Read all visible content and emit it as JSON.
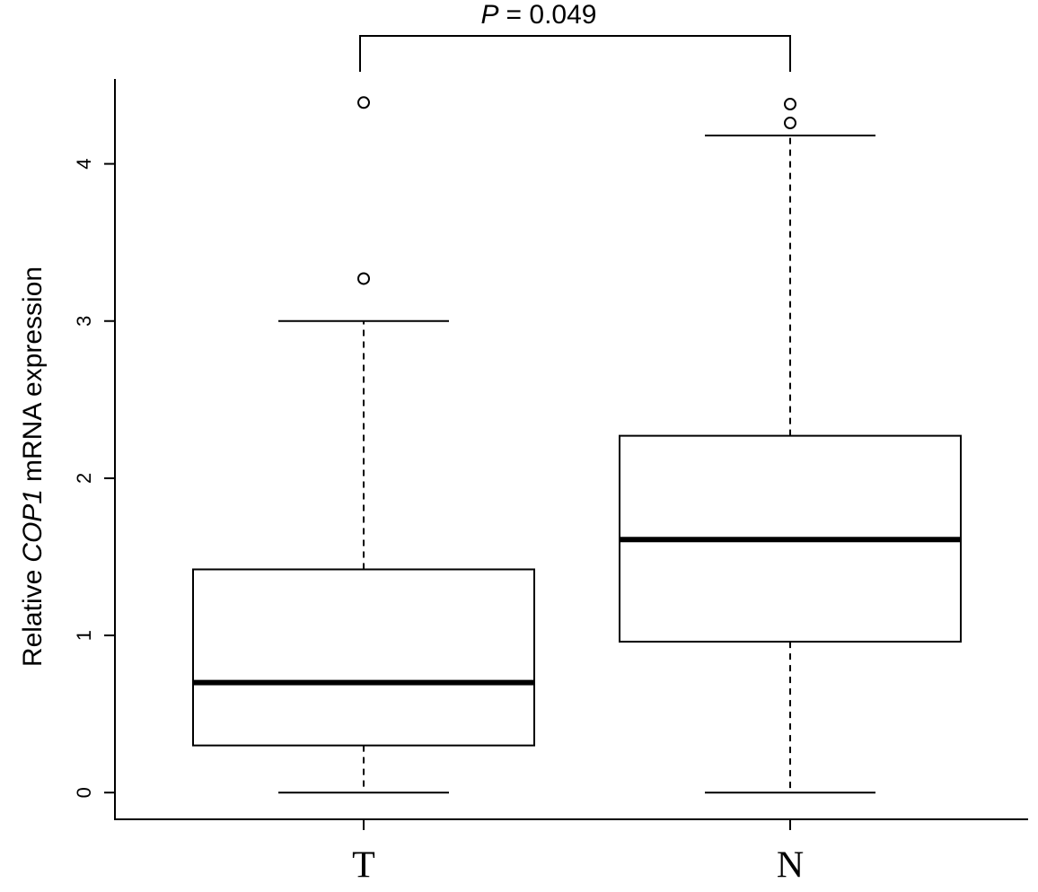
{
  "chart_data": {
    "type": "boxplot",
    "annotation": {
      "symbol": "P",
      "text": "= 0.049"
    },
    "ylabel": [
      "Relative",
      "COP1",
      "mRNA expression"
    ],
    "categories": [
      "T",
      "N"
    ],
    "boxes": [
      {
        "whislo": 0,
        "q1": 0.3,
        "med": 0.7,
        "q3": 1.42,
        "whishi": 3.0,
        "fliers": [
          3.27,
          4.39
        ]
      },
      {
        "whislo": 0,
        "q1": 0.96,
        "med": 1.61,
        "q3": 2.27,
        "whishi": 4.18,
        "fliers": [
          4.26,
          4.38
        ]
      }
    ],
    "color": "#000000",
    "ylim": [
      -0.17,
      4.54
    ],
    "yticks": [
      0,
      1,
      2,
      3,
      4
    ],
    "grid": false
  }
}
